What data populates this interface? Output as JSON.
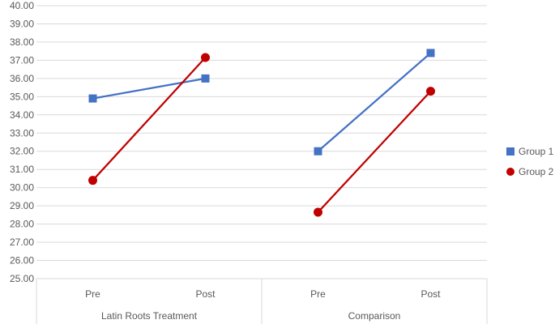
{
  "chart_data": {
    "type": "line",
    "ylim": [
      25,
      40
    ],
    "y_ticks": [
      "25.00",
      "26.00",
      "27.00",
      "28.00",
      "29.00",
      "30.00",
      "31.00",
      "32.00",
      "33.00",
      "34.00",
      "35.00",
      "36.00",
      "37.00",
      "38.00",
      "39.00",
      "40.00"
    ],
    "groups": [
      {
        "label": "Latin Roots Treatment",
        "categories": [
          "Pre",
          "Post"
        ]
      },
      {
        "label": "Comparison",
        "categories": [
          "Pre",
          "Post"
        ]
      }
    ],
    "series": [
      {
        "name": "Group 1",
        "color": "#4472C4",
        "marker": "square",
        "values": [
          [
            34.9,
            36.0
          ],
          [
            32.0,
            37.4
          ]
        ]
      },
      {
        "name": "Group 2",
        "color": "#C00000",
        "marker": "circle",
        "values": [
          [
            30.4,
            37.15
          ],
          [
            28.65,
            35.3
          ]
        ]
      }
    ],
    "grid": true,
    "legend": "right"
  }
}
